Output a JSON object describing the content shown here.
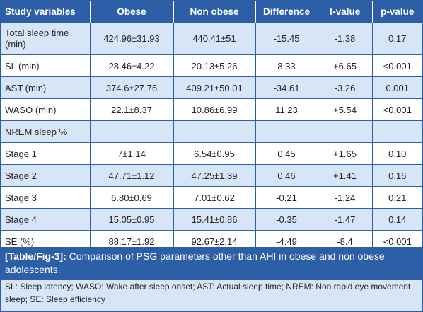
{
  "table": {
    "headers": [
      "Study variables",
      "Obese",
      "Non obese",
      "Difference",
      "t-value",
      "p-value"
    ],
    "rows": [
      [
        "Total sleep time (min)",
        "424.96±31.93",
        "440.41±51",
        "-15.45",
        "-1.38",
        "0.17"
      ],
      [
        "SL (min)",
        "28.46±4.22",
        "20.13±5.26",
        "8.33",
        "+6.65",
        "<0.001"
      ],
      [
        "AST (min)",
        "374.6±27.76",
        "409.21±50.01",
        "-34.61",
        "-3.26",
        "0.001"
      ],
      [
        "WASO (min)",
        "22.1±8.37",
        "10.86±6.99",
        "11.23",
        "+5.54",
        "<0.001"
      ],
      [
        "NREM sleep %",
        "",
        "",
        "",
        "",
        ""
      ],
      [
        "Stage 1",
        "7±1.14",
        "6.54±0.95",
        "0.45",
        "+1.65",
        "0.10"
      ],
      [
        "Stage 2",
        "47.71±1.12",
        "47.25±1.39",
        "0.46",
        "+1.41",
        "0.16"
      ],
      [
        "Stage 3",
        "6.80±0.69",
        "7.01±0.62",
        "-0.21",
        "-1.24",
        "0.21"
      ],
      [
        "Stage 4",
        "15.05±0.95",
        "15.41±0.86",
        "-0.35",
        "-1.47",
        "0.14"
      ],
      [
        "SE (%)",
        "88.17±1.92",
        "92.67±2.14",
        "-4.49",
        "-8.4",
        "<0.001"
      ]
    ]
  },
  "caption": {
    "label": "[Table/Fig-3]:",
    "text": " Comparison of PSG parameters other than AHI in obese and non obese adolescents."
  },
  "footnote": "SL: Sleep latency; WASO: Wake after sleep onset; AST: Actual sleep time; NREM: Non rapid eye movement sleep; SE: Sleep efficiency",
  "colors": {
    "header_bg": "#2d5fa6",
    "alt_row_bg": "#d7e6f6",
    "plain_row_bg": "#ffffff"
  }
}
